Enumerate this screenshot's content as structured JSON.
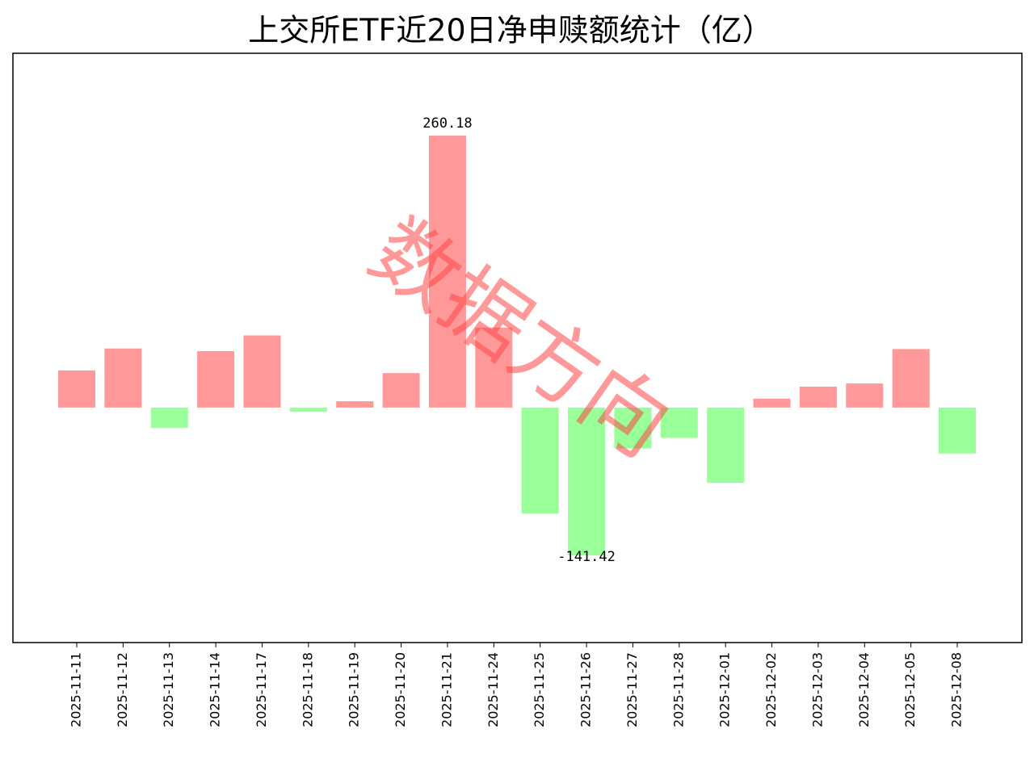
{
  "chart_data": {
    "type": "bar",
    "title": "上交所ETF近20日净申赎额统计（亿）",
    "watermark": "数据方向",
    "categories": [
      "2025-11-11",
      "2025-11-12",
      "2025-11-13",
      "2025-11-14",
      "2025-11-17",
      "2025-11-18",
      "2025-11-19",
      "2025-11-20",
      "2025-11-21",
      "2025-11-24",
      "2025-11-25",
      "2025-11-26",
      "2025-11-27",
      "2025-11-28",
      "2025-12-01",
      "2025-12-02",
      "2025-12-03",
      "2025-12-04",
      "2025-12-05",
      "2025-12-08"
    ],
    "values": [
      35.5,
      56.5,
      -19.5,
      54,
      69,
      -4,
      6,
      33,
      260.18,
      76.5,
      -101.5,
      -141.42,
      -39,
      -29,
      -72,
      8.5,
      20,
      23,
      56,
      -44
    ],
    "color_positive": "#ff9999",
    "color_negative": "#99ff99"
  }
}
